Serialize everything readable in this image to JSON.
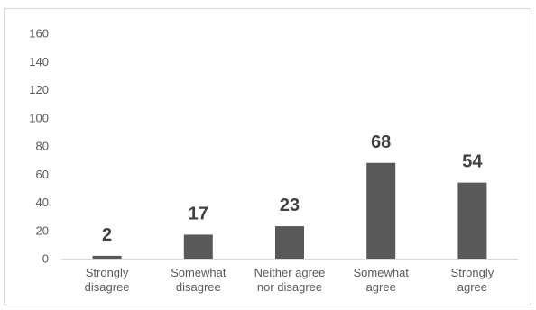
{
  "chart_data": {
    "type": "bar",
    "categories": [
      [
        "Strongly",
        "disagree"
      ],
      [
        "Somewhat",
        "disagree"
      ],
      [
        "Neither agree",
        "nor disagree"
      ],
      [
        "Somewhat",
        "agree"
      ],
      [
        "Strongly",
        "agree"
      ]
    ],
    "values": [
      2,
      17,
      23,
      68,
      54
    ],
    "data_labels": [
      "2",
      "17",
      "23",
      "68",
      "54"
    ],
    "y_ticks": [
      "0",
      "20",
      "40",
      "60",
      "80",
      "100",
      "120",
      "140",
      "160"
    ],
    "ylim": [
      0,
      160
    ],
    "title": "",
    "xlabel": "",
    "ylabel": "",
    "grid": false,
    "legend": "none",
    "bar_color": "#595959",
    "axis_color": "#d9d9d9",
    "text_color": "#595959",
    "label_color": "#404040"
  }
}
